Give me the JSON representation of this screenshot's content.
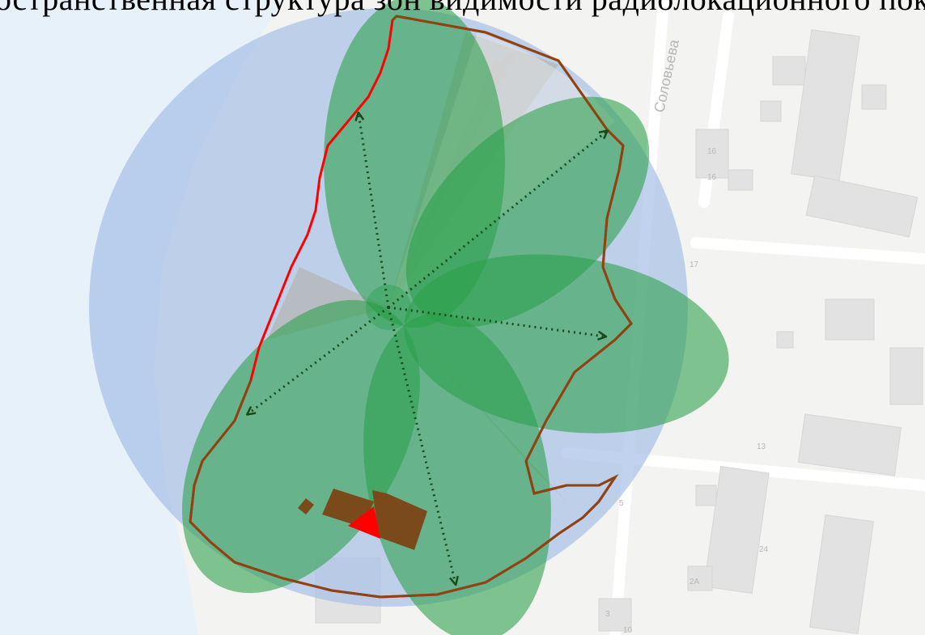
{
  "caption": "(а) Пространственная структура зон видимости радиолокационного покрытия",
  "map": {
    "street_labels": [
      "Соловьева"
    ],
    "house_numbers": [
      "16",
      "16",
      "17",
      "13",
      "5",
      "24",
      "2А",
      "3",
      "10"
    ]
  },
  "colors": {
    "water": "#e7f2fa",
    "blue_zone": "#a8c1e6",
    "green_lobe": "#2aa149",
    "outline_red": "#ff0000",
    "outline_brown": "#8b4513",
    "arrow": "#1a4a1a",
    "building_brown": "#7a4a1a",
    "gray_sector": "#b5b5b5"
  },
  "legend_icons": [
    "dotted-arrow-icon"
  ]
}
